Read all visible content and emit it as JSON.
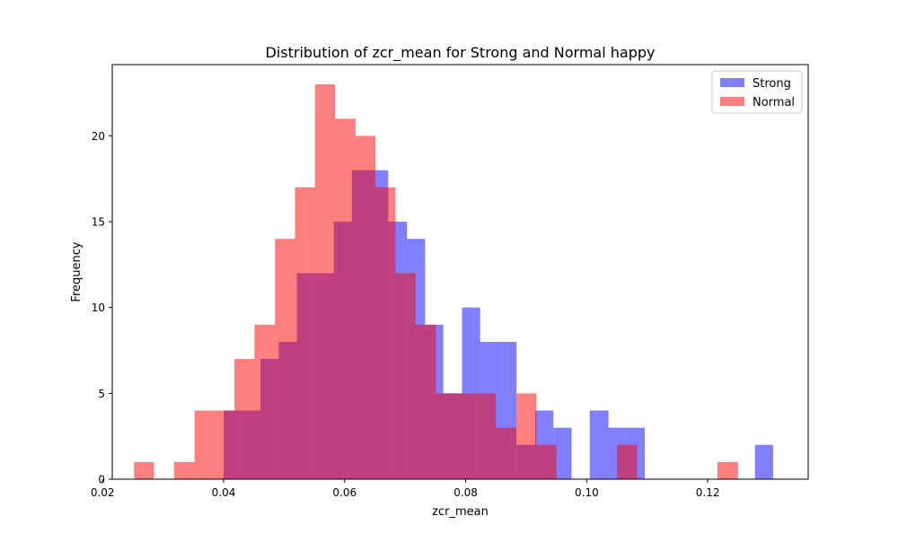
{
  "chart_data": {
    "type": "histogram",
    "title": "Distribution of zcr_mean for Strong and Normal happy",
    "xlabel": "zcr_mean",
    "ylabel": "Frequency",
    "xlim": [
      0.0216,
      0.1366
    ],
    "ylim": [
      0,
      24.15
    ],
    "xticks": [
      "0.02",
      "0.04",
      "0.06",
      "0.08",
      "0.10",
      "0.12"
    ],
    "xtick_values": [
      0.02,
      0.04,
      0.06,
      0.08,
      0.1,
      0.12
    ],
    "yticks": [
      "0",
      "5",
      "10",
      "15",
      "20"
    ],
    "ytick_values": [
      0,
      5,
      10,
      15,
      20
    ],
    "grid": false,
    "legend_position": "top-right",
    "series": [
      {
        "name": "Strong",
        "color": "#0000ff",
        "alpha": 0.5,
        "bins": [
          {
            "x0": 0.04,
            "x1": 0.043,
            "count": 4
          },
          {
            "x0": 0.043,
            "x1": 0.0461,
            "count": 4
          },
          {
            "x0": 0.0461,
            "x1": 0.0491,
            "count": 7
          },
          {
            "x0": 0.0491,
            "x1": 0.0521,
            "count": 8
          },
          {
            "x0": 0.0521,
            "x1": 0.0551,
            "count": 12
          },
          {
            "x0": 0.0551,
            "x1": 0.0582,
            "count": 12
          },
          {
            "x0": 0.0582,
            "x1": 0.0612,
            "count": 15
          },
          {
            "x0": 0.0612,
            "x1": 0.0642,
            "count": 18
          },
          {
            "x0": 0.0642,
            "x1": 0.0672,
            "count": 18
          },
          {
            "x0": 0.0672,
            "x1": 0.0703,
            "count": 15
          },
          {
            "x0": 0.0703,
            "x1": 0.0733,
            "count": 14
          },
          {
            "x0": 0.0733,
            "x1": 0.0763,
            "count": 9
          },
          {
            "x0": 0.0763,
            "x1": 0.0794,
            "count": 5
          },
          {
            "x0": 0.0794,
            "x1": 0.0824,
            "count": 10
          },
          {
            "x0": 0.0824,
            "x1": 0.0854,
            "count": 8
          },
          {
            "x0": 0.0854,
            "x1": 0.0884,
            "count": 8
          },
          {
            "x0": 0.0884,
            "x1": 0.0915,
            "count": 2
          },
          {
            "x0": 0.0915,
            "x1": 0.0945,
            "count": 4
          },
          {
            "x0": 0.0945,
            "x1": 0.0975,
            "count": 3
          },
          {
            "x0": 0.0975,
            "x1": 0.1005,
            "count": 0
          },
          {
            "x0": 0.1005,
            "x1": 0.1036,
            "count": 4
          },
          {
            "x0": 0.1036,
            "x1": 0.1066,
            "count": 3
          },
          {
            "x0": 0.1066,
            "x1": 0.1096,
            "count": 3
          },
          {
            "x0": 0.1096,
            "x1": 0.1127,
            "count": 0
          },
          {
            "x0": 0.1127,
            "x1": 0.1157,
            "count": 0
          },
          {
            "x0": 0.1157,
            "x1": 0.1187,
            "count": 0
          },
          {
            "x0": 0.1187,
            "x1": 0.1217,
            "count": 0
          },
          {
            "x0": 0.1217,
            "x1": 0.1248,
            "count": 0
          },
          {
            "x0": 0.1248,
            "x1": 0.1278,
            "count": 0
          },
          {
            "x0": 0.1278,
            "x1": 0.1308,
            "count": 2
          }
        ]
      },
      {
        "name": "Normal",
        "color": "#ff0000",
        "alpha": 0.5,
        "bins": [
          {
            "x0": 0.0252,
            "x1": 0.0285,
            "count": 1
          },
          {
            "x0": 0.0285,
            "x1": 0.0318,
            "count": 0
          },
          {
            "x0": 0.0318,
            "x1": 0.0352,
            "count": 1
          },
          {
            "x0": 0.0352,
            "x1": 0.0385,
            "count": 4
          },
          {
            "x0": 0.0385,
            "x1": 0.0418,
            "count": 4
          },
          {
            "x0": 0.0418,
            "x1": 0.0451,
            "count": 7
          },
          {
            "x0": 0.0451,
            "x1": 0.0485,
            "count": 9
          },
          {
            "x0": 0.0485,
            "x1": 0.0518,
            "count": 14
          },
          {
            "x0": 0.0518,
            "x1": 0.0551,
            "count": 17
          },
          {
            "x0": 0.0551,
            "x1": 0.0584,
            "count": 23
          },
          {
            "x0": 0.0584,
            "x1": 0.0618,
            "count": 21
          },
          {
            "x0": 0.0618,
            "x1": 0.0651,
            "count": 20
          },
          {
            "x0": 0.0651,
            "x1": 0.0684,
            "count": 17
          },
          {
            "x0": 0.0684,
            "x1": 0.0717,
            "count": 12
          },
          {
            "x0": 0.0717,
            "x1": 0.0751,
            "count": 9
          },
          {
            "x0": 0.0751,
            "x1": 0.0784,
            "count": 5
          },
          {
            "x0": 0.0784,
            "x1": 0.0817,
            "count": 5
          },
          {
            "x0": 0.0817,
            "x1": 0.085,
            "count": 5
          },
          {
            "x0": 0.085,
            "x1": 0.0884,
            "count": 3
          },
          {
            "x0": 0.0884,
            "x1": 0.0917,
            "count": 5
          },
          {
            "x0": 0.0917,
            "x1": 0.095,
            "count": 2
          },
          {
            "x0": 0.095,
            "x1": 0.0983,
            "count": 0
          },
          {
            "x0": 0.0983,
            "x1": 0.1017,
            "count": 0
          },
          {
            "x0": 0.1017,
            "x1": 0.105,
            "count": 0
          },
          {
            "x0": 0.105,
            "x1": 0.1083,
            "count": 2
          },
          {
            "x0": 0.1083,
            "x1": 0.1116,
            "count": 0
          },
          {
            "x0": 0.1116,
            "x1": 0.115,
            "count": 0
          },
          {
            "x0": 0.115,
            "x1": 0.1183,
            "count": 0
          },
          {
            "x0": 0.1183,
            "x1": 0.1216,
            "count": 0
          },
          {
            "x0": 0.1216,
            "x1": 0.125,
            "count": 1
          }
        ]
      }
    ]
  }
}
